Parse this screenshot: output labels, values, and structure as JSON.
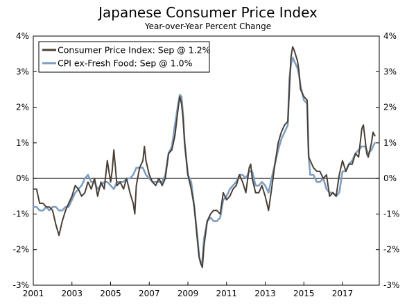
{
  "chart_data": {
    "type": "line",
    "title": "Japanese Consumer Price Index",
    "subtitle": "Year-over-Year Percent Change",
    "xlabel": "",
    "ylabel": "",
    "xlim": [
      2001.0,
      2018.9
    ],
    "ylim": [
      -3,
      4
    ],
    "y_ticks": [
      4,
      3,
      2,
      1,
      0,
      -1,
      -2,
      -3
    ],
    "y_tick_labels": [
      "4%",
      "3%",
      "2%",
      "1%",
      "0%",
      "-1%",
      "-2%",
      "-3%"
    ],
    "x_ticks": [
      2001,
      2003,
      2005,
      2007,
      2009,
      2011,
      2013,
      2015,
      2017
    ],
    "x_tick_labels": [
      "2001",
      "2003",
      "2005",
      "2007",
      "2009",
      "2011",
      "2013",
      "2015",
      "2017"
    ],
    "zero_line": true,
    "legend_position": "top-left",
    "series": [
      {
        "name": "Consumer Price Index: Sep @ 1.2%",
        "color": "#4a3f35",
        "points": [
          [
            2001.0,
            -0.3
          ],
          [
            2001.17,
            -0.3
          ],
          [
            2001.33,
            -0.7
          ],
          [
            2001.5,
            -0.7
          ],
          [
            2001.67,
            -0.8
          ],
          [
            2001.83,
            -0.8
          ],
          [
            2002.0,
            -0.9
          ],
          [
            2002.17,
            -1.3
          ],
          [
            2002.33,
            -1.6
          ],
          [
            2002.5,
            -1.2
          ],
          [
            2002.67,
            -0.9
          ],
          [
            2002.83,
            -0.7
          ],
          [
            2003.0,
            -0.5
          ],
          [
            2003.17,
            -0.2
          ],
          [
            2003.33,
            -0.3
          ],
          [
            2003.5,
            -0.5
          ],
          [
            2003.67,
            -0.4
          ],
          [
            2003.83,
            -0.1
          ],
          [
            2004.0,
            -0.3
          ],
          [
            2004.17,
            0.0
          ],
          [
            2004.33,
            -0.5
          ],
          [
            2004.5,
            -0.1
          ],
          [
            2004.67,
            -0.3
          ],
          [
            2004.83,
            0.5
          ],
          [
            2005.0,
            -0.1
          ],
          [
            2005.08,
            0.2
          ],
          [
            2005.17,
            0.8
          ],
          [
            2005.25,
            0.3
          ],
          [
            2005.33,
            -0.2
          ],
          [
            2005.5,
            -0.1
          ],
          [
            2005.67,
            -0.3
          ],
          [
            2005.83,
            0.0
          ],
          [
            2006.0,
            -0.4
          ],
          [
            2006.17,
            -0.7
          ],
          [
            2006.25,
            -1.0
          ],
          [
            2006.33,
            -0.2
          ],
          [
            2006.5,
            0.3
          ],
          [
            2006.67,
            0.5
          ],
          [
            2006.75,
            0.9
          ],
          [
            2006.83,
            0.5
          ],
          [
            2007.0,
            0.1
          ],
          [
            2007.17,
            -0.1
          ],
          [
            2007.33,
            -0.2
          ],
          [
            2007.5,
            0.0
          ],
          [
            2007.67,
            -0.2
          ],
          [
            2007.83,
            0.0
          ],
          [
            2008.0,
            0.7
          ],
          [
            2008.17,
            0.8
          ],
          [
            2008.33,
            1.2
          ],
          [
            2008.5,
            2.0
          ],
          [
            2008.58,
            2.3
          ],
          [
            2008.67,
            2.1
          ],
          [
            2008.75,
            1.7
          ],
          [
            2008.83,
            1.0
          ],
          [
            2009.0,
            0.1
          ],
          [
            2009.17,
            -0.3
          ],
          [
            2009.33,
            -0.8
          ],
          [
            2009.5,
            -1.8
          ],
          [
            2009.58,
            -2.2
          ],
          [
            2009.67,
            -2.4
          ],
          [
            2009.75,
            -2.5
          ],
          [
            2009.83,
            -1.9
          ],
          [
            2010.0,
            -1.2
          ],
          [
            2010.17,
            -1.0
          ],
          [
            2010.33,
            -0.9
          ],
          [
            2010.5,
            -0.9
          ],
          [
            2010.67,
            -1.0
          ],
          [
            2010.83,
            -0.4
          ],
          [
            2011.0,
            -0.6
          ],
          [
            2011.17,
            -0.5
          ],
          [
            2011.33,
            -0.3
          ],
          [
            2011.5,
            -0.2
          ],
          [
            2011.67,
            0.1
          ],
          [
            2011.83,
            -0.1
          ],
          [
            2012.0,
            -0.4
          ],
          [
            2012.17,
            0.3
          ],
          [
            2012.25,
            0.4
          ],
          [
            2012.33,
            0.0
          ],
          [
            2012.5,
            -0.4
          ],
          [
            2012.67,
            -0.4
          ],
          [
            2012.83,
            -0.2
          ],
          [
            2013.0,
            -0.5
          ],
          [
            2013.17,
            -0.9
          ],
          [
            2013.33,
            -0.3
          ],
          [
            2013.5,
            0.4
          ],
          [
            2013.67,
            1.0
          ],
          [
            2013.83,
            1.3
          ],
          [
            2014.0,
            1.5
          ],
          [
            2014.17,
            1.6
          ],
          [
            2014.25,
            2.5
          ],
          [
            2014.33,
            3.4
          ],
          [
            2014.42,
            3.7
          ],
          [
            2014.5,
            3.6
          ],
          [
            2014.67,
            3.3
          ],
          [
            2014.75,
            3.0
          ],
          [
            2014.83,
            2.5
          ],
          [
            2015.0,
            2.3
          ],
          [
            2015.17,
            2.2
          ],
          [
            2015.25,
            0.6
          ],
          [
            2015.33,
            0.5
          ],
          [
            2015.5,
            0.3
          ],
          [
            2015.67,
            0.2
          ],
          [
            2015.83,
            0.2
          ],
          [
            2016.0,
            0.0
          ],
          [
            2016.17,
            0.1
          ],
          [
            2016.33,
            -0.5
          ],
          [
            2016.5,
            -0.4
          ],
          [
            2016.67,
            -0.5
          ],
          [
            2016.83,
            0.1
          ],
          [
            2017.0,
            0.5
          ],
          [
            2017.17,
            0.2
          ],
          [
            2017.33,
            0.4
          ],
          [
            2017.5,
            0.4
          ],
          [
            2017.67,
            0.7
          ],
          [
            2017.83,
            0.6
          ],
          [
            2018.0,
            1.4
          ],
          [
            2018.08,
            1.5
          ],
          [
            2018.17,
            1.1
          ],
          [
            2018.25,
            0.7
          ],
          [
            2018.33,
            0.6
          ],
          [
            2018.5,
            1.0
          ],
          [
            2018.58,
            1.3
          ],
          [
            2018.67,
            1.2
          ]
        ]
      },
      {
        "name": "CPI ex-Fresh Food: Sep @ 1.0%",
        "color": "#7f9ec0",
        "points": [
          [
            2001.0,
            -0.8
          ],
          [
            2001.17,
            -0.8
          ],
          [
            2001.33,
            -0.9
          ],
          [
            2001.5,
            -0.9
          ],
          [
            2001.67,
            -0.8
          ],
          [
            2001.83,
            -0.9
          ],
          [
            2002.0,
            -0.8
          ],
          [
            2002.17,
            -0.8
          ],
          [
            2002.33,
            -0.9
          ],
          [
            2002.5,
            -0.9
          ],
          [
            2002.67,
            -0.8
          ],
          [
            2002.83,
            -0.8
          ],
          [
            2003.0,
            -0.6
          ],
          [
            2003.17,
            -0.4
          ],
          [
            2003.33,
            -0.3
          ],
          [
            2003.5,
            -0.2
          ],
          [
            2003.67,
            0.0
          ],
          [
            2003.83,
            0.1
          ],
          [
            2004.0,
            -0.1
          ],
          [
            2004.17,
            -0.1
          ],
          [
            2004.33,
            -0.3
          ],
          [
            2004.5,
            -0.2
          ],
          [
            2004.67,
            -0.1
          ],
          [
            2004.83,
            -0.1
          ],
          [
            2005.0,
            -0.2
          ],
          [
            2005.17,
            -0.3
          ],
          [
            2005.33,
            -0.1
          ],
          [
            2005.5,
            -0.1
          ],
          [
            2005.67,
            -0.1
          ],
          [
            2005.83,
            0.0
          ],
          [
            2006.0,
            0.0
          ],
          [
            2006.17,
            0.1
          ],
          [
            2006.33,
            0.3
          ],
          [
            2006.5,
            0.3
          ],
          [
            2006.67,
            0.3
          ],
          [
            2006.83,
            0.1
          ],
          [
            2007.0,
            0.0
          ],
          [
            2007.17,
            -0.1
          ],
          [
            2007.33,
            -0.1
          ],
          [
            2007.5,
            -0.1
          ],
          [
            2007.67,
            -0.1
          ],
          [
            2007.83,
            0.1
          ],
          [
            2008.0,
            0.7
          ],
          [
            2008.17,
            0.9
          ],
          [
            2008.33,
            1.5
          ],
          [
            2008.5,
            2.1
          ],
          [
            2008.58,
            2.35
          ],
          [
            2008.67,
            2.3
          ],
          [
            2008.75,
            1.8
          ],
          [
            2008.83,
            1.0
          ],
          [
            2009.0,
            0.1
          ],
          [
            2009.17,
            -0.1
          ],
          [
            2009.33,
            -0.8
          ],
          [
            2009.5,
            -1.7
          ],
          [
            2009.58,
            -2.2
          ],
          [
            2009.67,
            -2.4
          ],
          [
            2009.75,
            -2.3
          ],
          [
            2009.83,
            -1.7
          ],
          [
            2010.0,
            -1.2
          ],
          [
            2010.17,
            -1.1
          ],
          [
            2010.33,
            -1.2
          ],
          [
            2010.5,
            -1.2
          ],
          [
            2010.67,
            -1.1
          ],
          [
            2010.83,
            -0.6
          ],
          [
            2011.0,
            -0.5
          ],
          [
            2011.17,
            -0.3
          ],
          [
            2011.33,
            -0.2
          ],
          [
            2011.5,
            -0.1
          ],
          [
            2011.67,
            0.1
          ],
          [
            2011.83,
            0.1
          ],
          [
            2012.0,
            0.0
          ],
          [
            2012.17,
            0.2
          ],
          [
            2012.33,
            0.2
          ],
          [
            2012.5,
            -0.2
          ],
          [
            2012.67,
            -0.2
          ],
          [
            2012.83,
            -0.1
          ],
          [
            2013.0,
            -0.2
          ],
          [
            2013.17,
            -0.4
          ],
          [
            2013.33,
            0.0
          ],
          [
            2013.5,
            0.4
          ],
          [
            2013.67,
            0.8
          ],
          [
            2013.83,
            1.1
          ],
          [
            2014.0,
            1.3
          ],
          [
            2014.17,
            1.5
          ],
          [
            2014.25,
            2.8
          ],
          [
            2014.33,
            3.2
          ],
          [
            2014.42,
            3.4
          ],
          [
            2014.5,
            3.3
          ],
          [
            2014.67,
            3.1
          ],
          [
            2014.75,
            2.9
          ],
          [
            2014.83,
            2.6
          ],
          [
            2015.0,
            2.2
          ],
          [
            2015.17,
            2.1
          ],
          [
            2015.25,
            0.6
          ],
          [
            2015.33,
            0.1
          ],
          [
            2015.5,
            0.1
          ],
          [
            2015.67,
            -0.1
          ],
          [
            2015.83,
            -0.1
          ],
          [
            2016.0,
            0.0
          ],
          [
            2016.17,
            -0.3
          ],
          [
            2016.33,
            -0.4
          ],
          [
            2016.5,
            -0.4
          ],
          [
            2016.67,
            -0.5
          ],
          [
            2016.83,
            -0.4
          ],
          [
            2017.0,
            0.2
          ],
          [
            2017.17,
            0.2
          ],
          [
            2017.33,
            0.4
          ],
          [
            2017.5,
            0.5
          ],
          [
            2017.67,
            0.7
          ],
          [
            2017.83,
            0.8
          ],
          [
            2018.0,
            0.9
          ],
          [
            2018.17,
            0.9
          ],
          [
            2018.33,
            0.7
          ],
          [
            2018.5,
            0.8
          ],
          [
            2018.58,
            0.9
          ],
          [
            2018.67,
            1.0
          ]
        ]
      }
    ]
  }
}
